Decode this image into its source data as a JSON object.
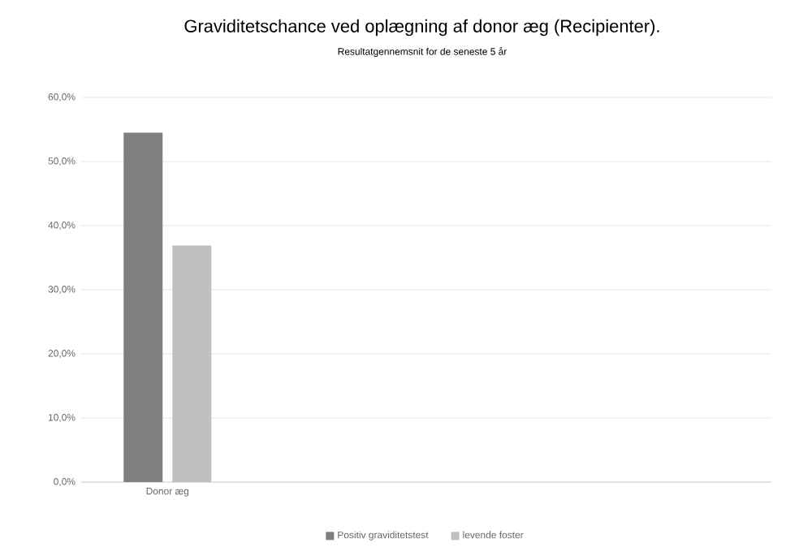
{
  "chart_data": {
    "type": "bar",
    "title": "Graviditetschance ved oplægning af donor æg (Recipienter).",
    "subtitle": "Resultatgennemsnit for de seneste 5 år",
    "categories": [
      "Donor æg",
      null,
      null,
      null
    ],
    "series": [
      {
        "name": "Positiv graviditetstest",
        "color": "#7f7f7f",
        "values": [
          54.5,
          null,
          null,
          null
        ]
      },
      {
        "name": "levende foster",
        "color": "#bfbfbf",
        "values": [
          36.9,
          null,
          null,
          null
        ]
      }
    ],
    "ylim": [
      0,
      60
    ],
    "yticks": [
      {
        "value": 0,
        "label": "0,0%"
      },
      {
        "value": 10,
        "label": "10,0%"
      },
      {
        "value": 20,
        "label": "20,0%"
      },
      {
        "value": 30,
        "label": "30,0%"
      },
      {
        "value": 40,
        "label": "40,0%"
      },
      {
        "value": 50,
        "label": "50,0%"
      },
      {
        "value": 60,
        "label": "60,0%"
      }
    ],
    "grid": "y",
    "legend": "bottom"
  }
}
